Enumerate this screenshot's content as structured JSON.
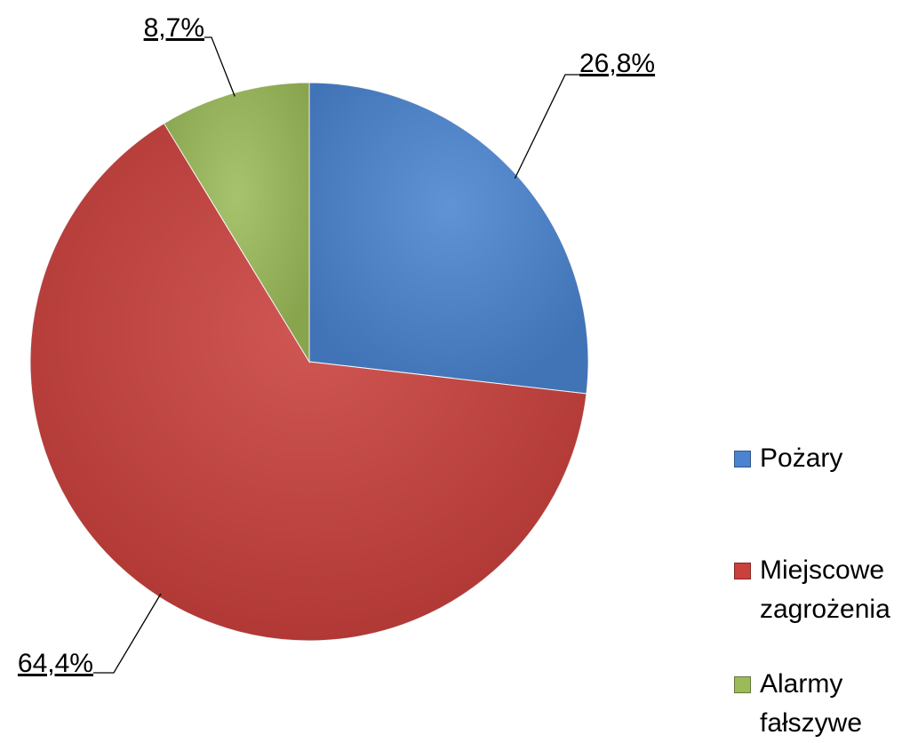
{
  "chart_data": {
    "type": "pie",
    "categories": [
      "Pożary",
      "Miejscowe zagrożenia",
      "Alarmy fałszywe"
    ],
    "values": [
      26.8,
      64.4,
      8.7
    ],
    "value_labels": [
      "26,8%",
      "64,4%",
      "8,7%"
    ],
    "colors": [
      "#4a84d0",
      "#c9403c",
      "#9bbb59"
    ],
    "legend": "right"
  }
}
